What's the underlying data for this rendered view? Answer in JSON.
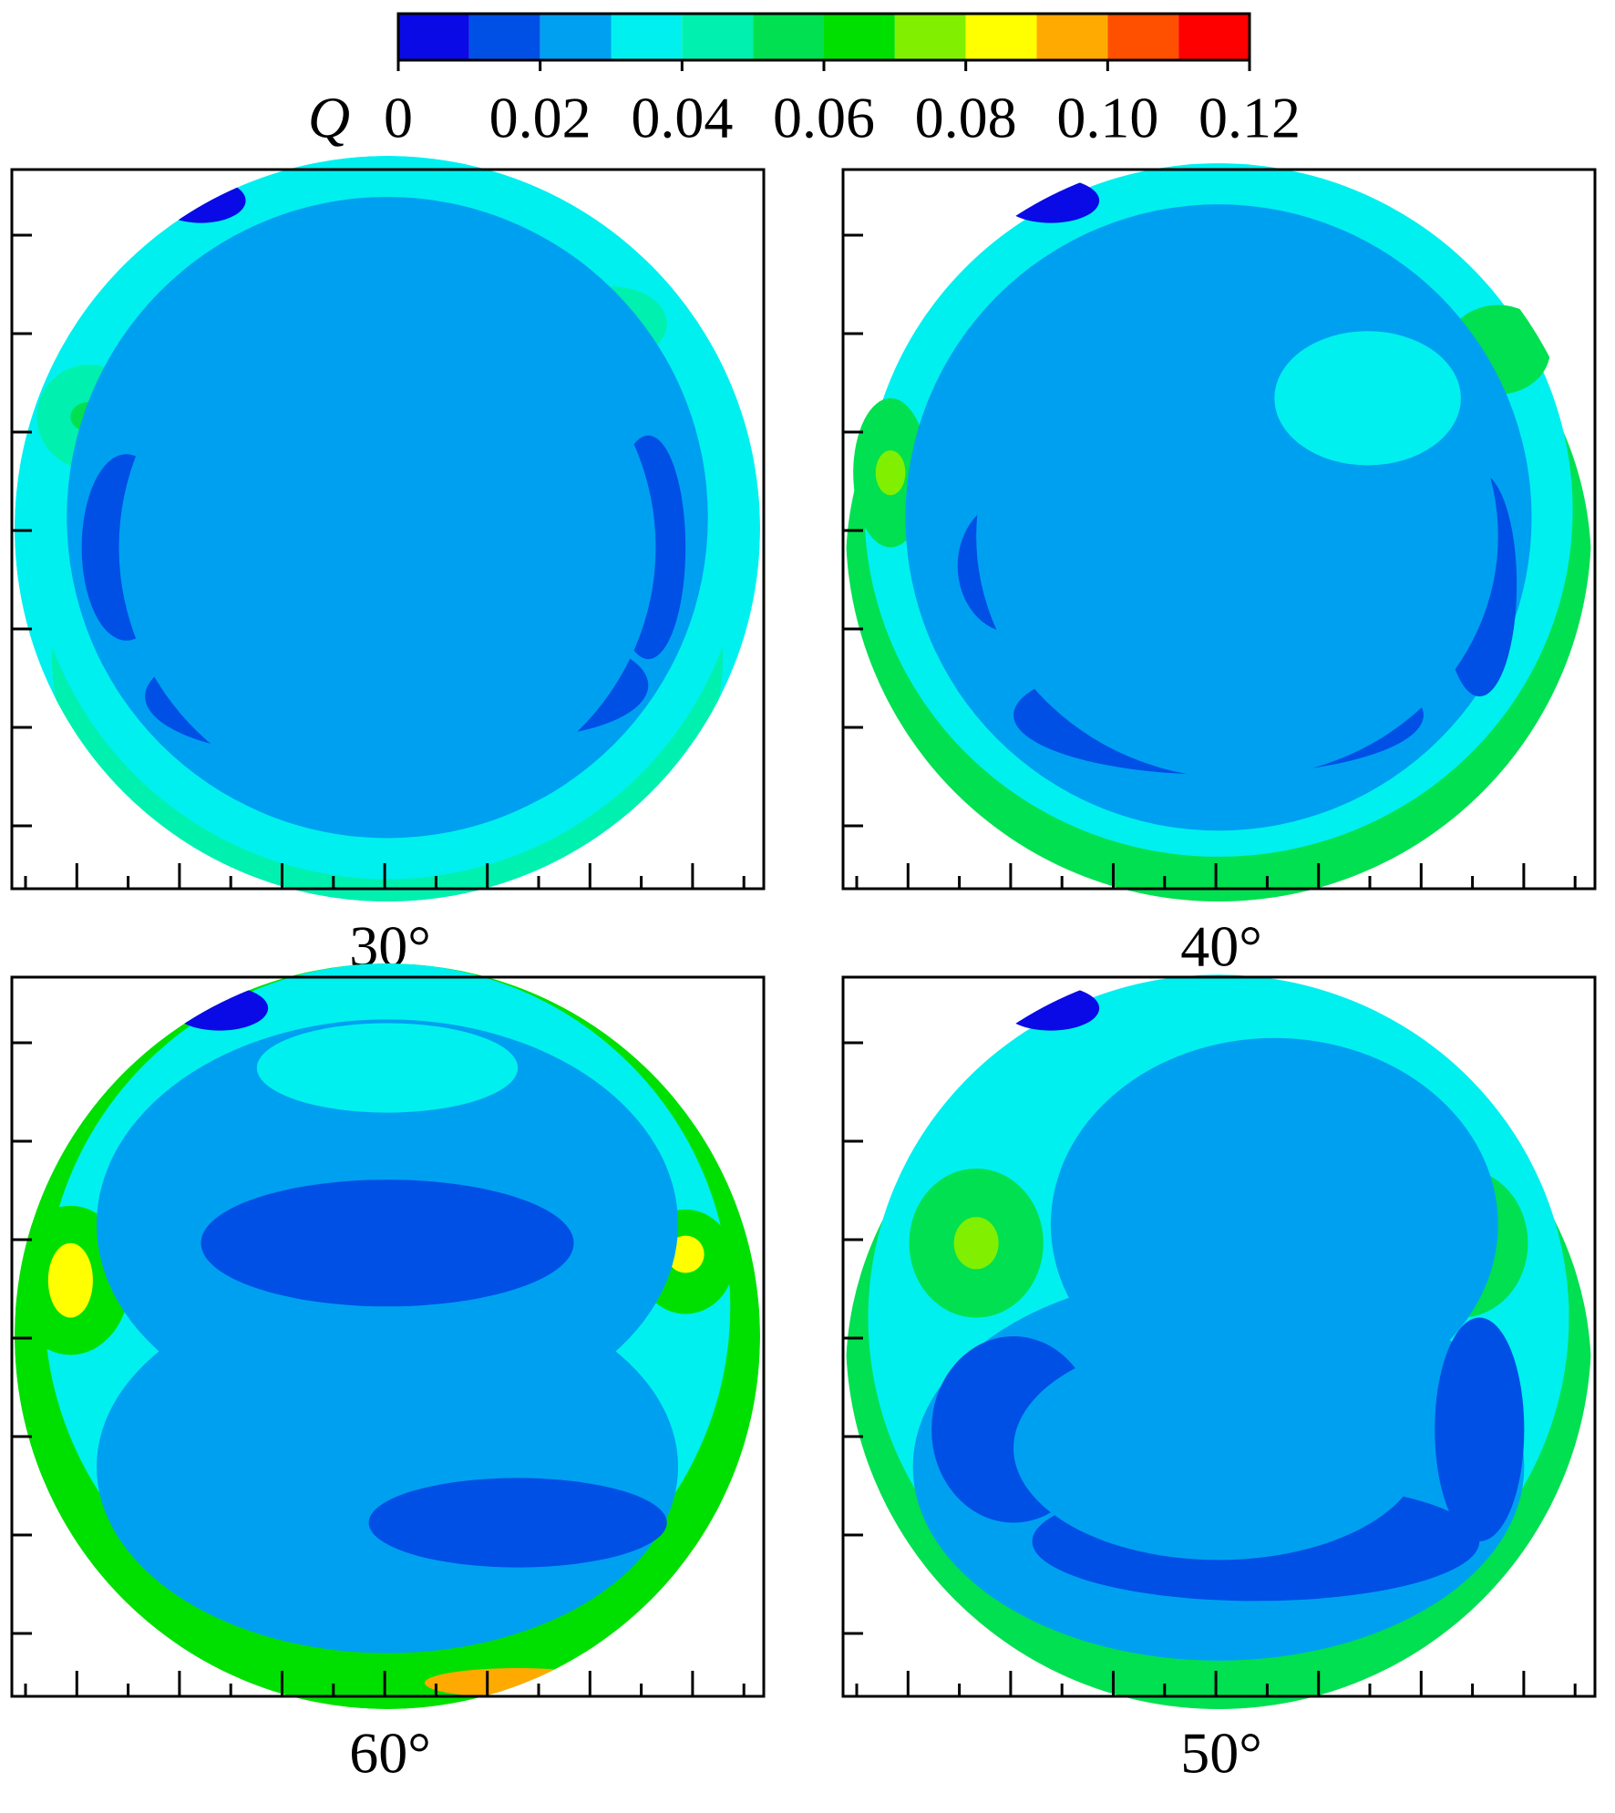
{
  "chart_data": {
    "type": "contour",
    "colorbar": {
      "label": "Q",
      "levels": [
        0,
        0.01,
        0.02,
        0.03,
        0.04,
        0.05,
        0.06,
        0.07,
        0.08,
        0.09,
        0.1,
        0.11,
        0.12
      ],
      "colors": [
        "#0a0ae6",
        "#0050e6",
        "#00a0f0",
        "#00f0f0",
        "#00f0b0",
        "#00e050",
        "#00e000",
        "#80f000",
        "#ffff00",
        "#ffaa00",
        "#ff5000",
        "#ff0000"
      ],
      "lim": [
        0,
        0.12
      ],
      "ticks": [
        0,
        0.02,
        0.04,
        0.06,
        0.08,
        {
          "value": 0.1,
          "label": "0.10"
        },
        0.12
      ]
    },
    "panels": [
      {
        "title": "30°"
      },
      {
        "title": "40°"
      },
      {
        "title": "60°"
      },
      {
        "title": "50°"
      }
    ]
  }
}
